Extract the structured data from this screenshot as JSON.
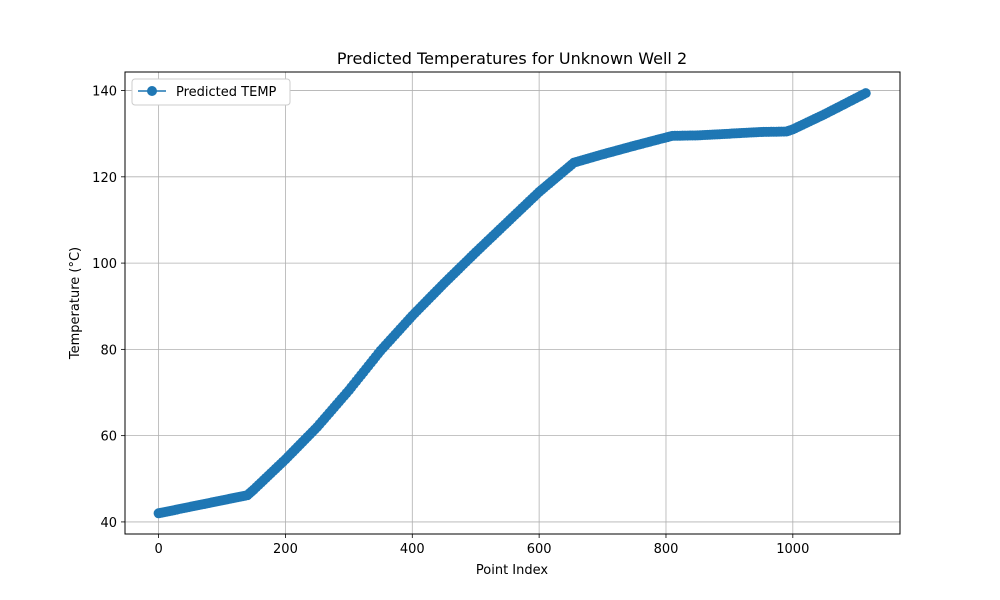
{
  "chart_data": {
    "type": "line",
    "title": "Predicted Temperatures for Unknown Well 2",
    "xlabel": "Point Index",
    "ylabel": "Temperature (°C)",
    "xlim": [
      -53,
      1169
    ],
    "ylim": [
      37.2,
      144.3
    ],
    "xticks": [
      0,
      200,
      400,
      600,
      800,
      1000
    ],
    "yticks": [
      40,
      60,
      80,
      100,
      120,
      140
    ],
    "grid": true,
    "legend_position": "top-left",
    "series": [
      {
        "name": "Predicted TEMP",
        "color": "#1f77b4",
        "marker": "circle",
        "points": [
          [
            0,
            42.0
          ],
          [
            140,
            46.2
          ],
          [
            150,
            47.5
          ],
          [
            200,
            54.5
          ],
          [
            250,
            62.0
          ],
          [
            300,
            70.5
          ],
          [
            350,
            79.7
          ],
          [
            400,
            87.8
          ],
          [
            450,
            95.3
          ],
          [
            500,
            102.5
          ],
          [
            550,
            109.5
          ],
          [
            600,
            116.5
          ],
          [
            655,
            123.3
          ],
          [
            700,
            125.2
          ],
          [
            750,
            127.2
          ],
          [
            810,
            129.5
          ],
          [
            850,
            129.6
          ],
          [
            900,
            130.0
          ],
          [
            950,
            130.4
          ],
          [
            990,
            130.5
          ],
          [
            1000,
            131.0
          ],
          [
            1050,
            134.5
          ],
          [
            1115,
            139.4
          ]
        ]
      }
    ]
  }
}
